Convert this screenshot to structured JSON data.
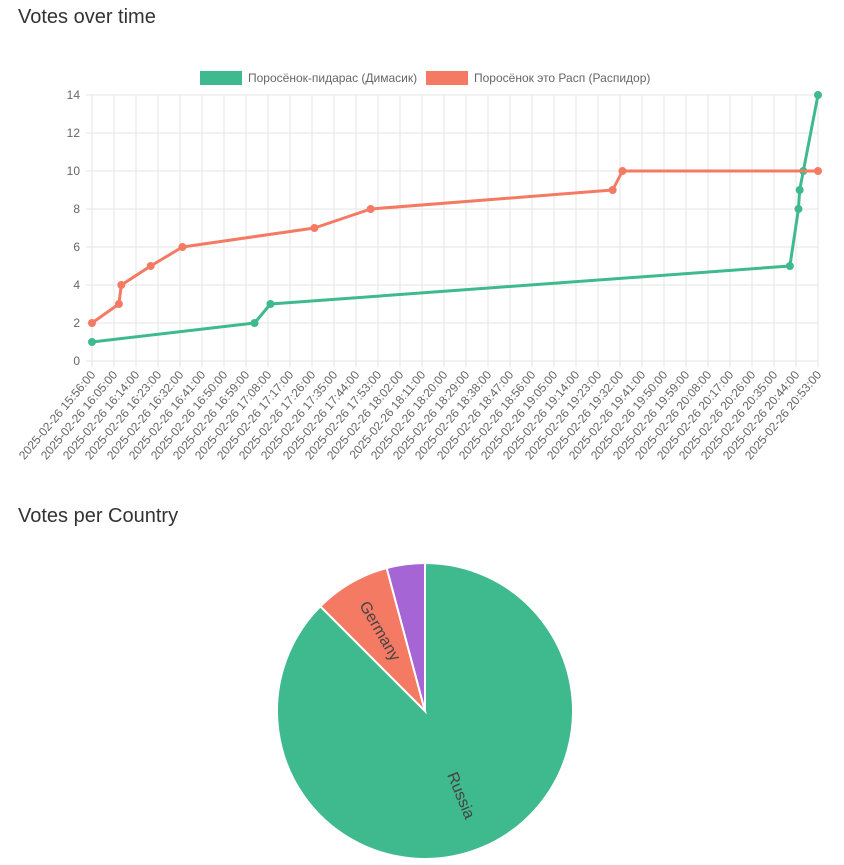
{
  "charts": {
    "line_title": "Votes over time",
    "pie_title": "Votes per Country"
  },
  "colors": {
    "series_a": "#3fb98e",
    "series_b": "#f47a64",
    "pie_russia": "#3fb98e",
    "pie_germany": "#f47a64",
    "pie_other": "#a565d4",
    "grid": "#e6e6e6"
  },
  "chart_data": [
    {
      "type": "line",
      "title": "Votes over time",
      "legend_position": "top",
      "grid": true,
      "ylim": [
        0,
        14
      ],
      "y_ticks": [
        0,
        2,
        4,
        6,
        8,
        10,
        12,
        14
      ],
      "x_ticks": [
        "2025-02-26 15:56:00",
        "2025-02-26 16:05:00",
        "2025-02-26 16:14:00",
        "2025-02-26 16:23:00",
        "2025-02-26 16:32:00",
        "2025-02-26 16:41:00",
        "2025-02-26 16:50:00",
        "2025-02-26 16:59:00",
        "2025-02-26 17:08:00",
        "2025-02-26 17:17:00",
        "2025-02-26 17:26:00",
        "2025-02-26 17:35:00",
        "2025-02-26 17:44:00",
        "2025-02-26 17:53:00",
        "2025-02-26 18:02:00",
        "2025-02-26 18:11:00",
        "2025-02-26 18:20:00",
        "2025-02-26 18:29:00",
        "2025-02-26 18:38:00",
        "2025-02-26 18:47:00",
        "2025-02-26 18:56:00",
        "2025-02-26 19:05:00",
        "2025-02-26 19:14:00",
        "2025-02-26 19:23:00",
        "2025-02-26 19:32:00",
        "2025-02-26 19:41:00",
        "2025-02-26 19:50:00",
        "2025-02-26 19:59:00",
        "2025-02-26 20:08:00",
        "2025-02-26 20:17:00",
        "2025-02-26 20:26:00",
        "2025-02-26 20:35:00",
        "2025-02-26 20:44:00",
        "2025-02-26 20:53:00"
      ],
      "series": [
        {
          "name": "Поросёнок-пидарас (Димасик)",
          "points": [
            [
              "2025-02-26 15:56:00",
              1
            ],
            [
              "2025-02-26 17:02:30",
              2
            ],
            [
              "2025-02-26 17:09:00",
              3
            ],
            [
              "2025-02-26 20:41:30",
              5
            ],
            [
              "2025-02-26 20:45:00",
              8
            ],
            [
              "2025-02-26 20:45:30",
              9
            ],
            [
              "2025-02-26 20:47:00",
              10
            ],
            [
              "2025-02-26 20:53:00",
              14
            ]
          ]
        },
        {
          "name": "Поросёнок это Расп (Распидор)",
          "points": [
            [
              "2025-02-26 15:56:00",
              2
            ],
            [
              "2025-02-26 16:07:00",
              3
            ],
            [
              "2025-02-26 16:08:00",
              4
            ],
            [
              "2025-02-26 16:20:00",
              5
            ],
            [
              "2025-02-26 16:33:00",
              6
            ],
            [
              "2025-02-26 17:27:00",
              7
            ],
            [
              "2025-02-26 17:50:00",
              8
            ],
            [
              "2025-02-26 19:29:00",
              9
            ],
            [
              "2025-02-26 19:33:00",
              10
            ],
            [
              "2025-02-26 20:53:00",
              10
            ]
          ]
        }
      ]
    },
    {
      "type": "pie",
      "title": "Votes per Country",
      "slices": [
        {
          "label": "Russia",
          "value": 21
        },
        {
          "label": "Germany",
          "value": 2
        },
        {
          "label": "",
          "value": 1
        }
      ]
    }
  ]
}
